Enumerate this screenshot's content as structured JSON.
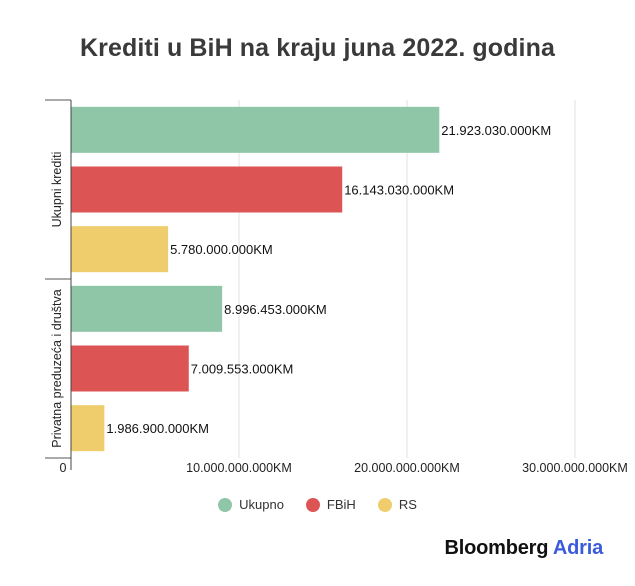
{
  "chart_data": {
    "type": "bar",
    "orientation": "horizontal",
    "title": "Krediti u BiH na kraju juna 2022. godina",
    "unit_suffix": "KM",
    "groups": [
      "Ukupni krediti",
      "Privatna preduzeća i društva"
    ],
    "series": [
      {
        "name": "Ukupno",
        "color": "#8fc6a8",
        "values": [
          21923030000,
          8996453000
        ],
        "labels": [
          "21.923.030.000KM",
          "8.996.453.000KM"
        ]
      },
      {
        "name": "FBiH",
        "color": "#dd5454",
        "values": [
          16143030000,
          7009553000
        ],
        "labels": [
          "16.143.030.000KM",
          "7.009.553.000KM"
        ]
      },
      {
        "name": "RS",
        "color": "#f0cd6c",
        "values": [
          5780000000,
          1986900000
        ],
        "labels": [
          "5.780.000.000KM",
          "1.986.900.000KM"
        ]
      }
    ],
    "xlim": [
      0,
      30000000000
    ],
    "x_ticks": [
      0,
      10000000000,
      20000000000,
      30000000000
    ],
    "x_tick_labels": [
      "0",
      "10.000.000.000KM",
      "20.000.000.000KM",
      "30.000.000.000KM"
    ],
    "grid": true,
    "legend_position": "bottom"
  },
  "legend": [
    {
      "name": "Ukupno",
      "color": "#8fc6a8"
    },
    {
      "name": "FBiH",
      "color": "#dd5454"
    },
    {
      "name": "RS",
      "color": "#f0cd6c"
    }
  ],
  "brand": {
    "main": "Bloomberg",
    "accent": "Adria"
  }
}
